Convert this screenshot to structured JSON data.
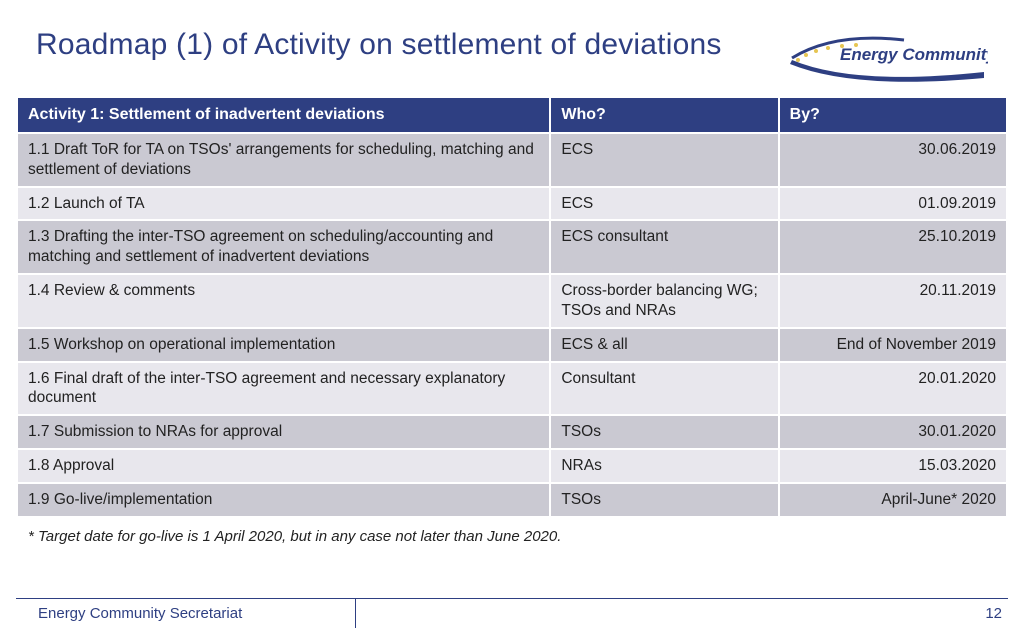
{
  "title": "Roadmap (1) of Activity on settlement of deviations",
  "logo_text": "Energy Community",
  "colors": {
    "title": "#2e3f82",
    "header_bg": "#2e3f82",
    "header_text": "#ffffff",
    "row_odd": "#cac9d2",
    "row_even": "#e8e7ed",
    "body_text": "#222222",
    "footer_text": "#2e3f82"
  },
  "table": {
    "columns": [
      {
        "label": "Activity 1: Settlement of inadvertent deviations",
        "width": "54%"
      },
      {
        "label": "Who?",
        "width": "23%"
      },
      {
        "label": "By?",
        "width": "23%",
        "align": "left"
      }
    ],
    "rows": [
      {
        "activity": "1.1 Draft ToR for TA on TSOs' arrangements for scheduling, matching and settlement of deviations",
        "who": "ECS",
        "by": "30.06.2019"
      },
      {
        "activity": "1.2 Launch of TA",
        "who": "ECS",
        "by": "01.09.2019"
      },
      {
        "activity": "1.3 Drafting the inter-TSO agreement on scheduling/accounting and matching and settlement of inadvertent deviations",
        "who": "ECS consultant",
        "by": "25.10.2019"
      },
      {
        "activity": "1.4 Review & comments",
        "who": "Cross-border balancing WG; TSOs and NRAs",
        "by": "20.11.2019"
      },
      {
        "activity": "1.5 Workshop on operational implementation",
        "who": "ECS & all",
        "by": "End of November 2019"
      },
      {
        "activity": "1.6 Final draft of the inter-TSO agreement and necessary explanatory document",
        "who": "Consultant",
        "by": "20.01.2020"
      },
      {
        "activity": "1.7 Submission to NRAs for approval",
        "who": "TSOs",
        "by": "30.01.2020"
      },
      {
        "activity": "1.8 Approval",
        "who": "NRAs",
        "by": "15.03.2020"
      },
      {
        "activity": "1.9 Go-live/implementation",
        "who": "TSOs",
        "by": "April-June* 2020"
      }
    ]
  },
  "footnote": "* Target date for go-live is 1 April 2020, but in any case not later than June 2020.",
  "footer": {
    "org": "Energy Community Secretariat",
    "page": "12"
  }
}
